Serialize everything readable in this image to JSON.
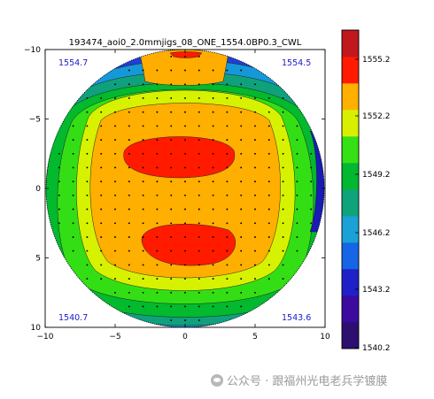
{
  "chart_data": {
    "type": "heatmap",
    "title": "193474_aoi0_2.0mmjigs_08_ONE_1554.0BP0.3_CWL",
    "xlim": [
      -10,
      10
    ],
    "ylim": [
      -10,
      10
    ],
    "y_axis_inverted": true,
    "x_ticks": [
      "−10",
      "−5",
      "0",
      "5",
      "10"
    ],
    "y_ticks": [
      "−10",
      "−5",
      "0",
      "5",
      "10"
    ],
    "corner_values": {
      "top_left": "1554.7",
      "top_right": "1554.5",
      "bottom_left": "1540.7",
      "bottom_right": "1543.6"
    },
    "colorbar": {
      "labels": [
        "1555.2",
        "1552.2",
        "1549.2",
        "1546.2",
        "1543.2",
        "1540.2"
      ],
      "colors": [
        "#2c0f6e",
        "#3d0aa0",
        "#2020c8",
        "#1565e6",
        "#1aa2d6",
        "#0fa37a",
        "#02b830",
        "#35e015",
        "#d8f000",
        "#ffb000",
        "#ff1a00",
        "#c0181c"
      ]
    },
    "hotspots": [
      {
        "name": "upper-peak",
        "center": [
          -1.5,
          -2.5
        ]
      },
      {
        "name": "lower-peak",
        "center": [
          0.5,
          4.0
        ]
      }
    ]
  },
  "watermark": {
    "text": "公众号 · 跟福州光电老兵学镀膜"
  }
}
